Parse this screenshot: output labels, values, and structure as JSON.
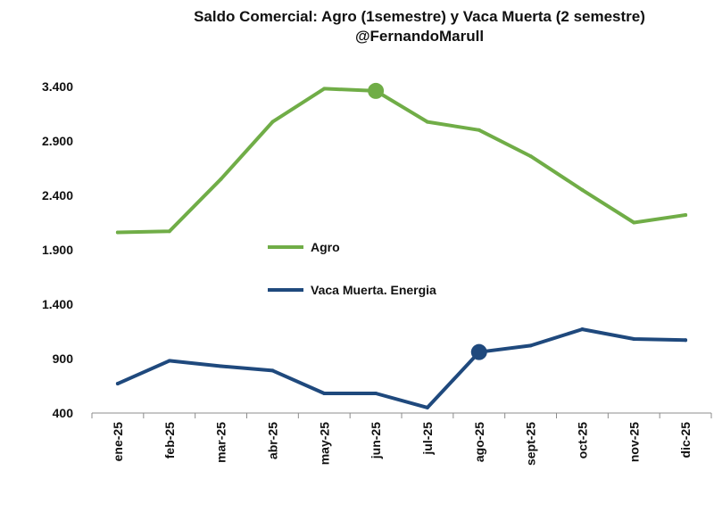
{
  "chart_data": {
    "type": "line",
    "title": "Saldo Comercial: Agro (1semestre) y Vaca Muerta (2 semestre)",
    "subtitle": "@FernandoMarull",
    "categories": [
      "ene-25",
      "feb-25",
      "mar-25",
      "abr-25",
      "may-25",
      "jun-25",
      "jul-25",
      "ago-25",
      "sept-25",
      "oct-25",
      "nov-25",
      "dic-25"
    ],
    "ylim": [
      400,
      3400
    ],
    "yticks": [
      400,
      900,
      1400,
      1900,
      2400,
      2900,
      3400
    ],
    "ytick_labels": [
      "400",
      "900",
      "1.400",
      "1.900",
      "2.400",
      "2.900",
      "3.400"
    ],
    "grid": false,
    "legend_position": "center",
    "series": [
      {
        "name": "Agro",
        "color": "#70ad47",
        "values": [
          2060,
          2070,
          2550,
          3075,
          3380,
          3360,
          3075,
          3000,
          2760,
          2450,
          2150,
          2220
        ],
        "highlight_index": 5
      },
      {
        "name": "Vaca Muerta. Energia",
        "color": "#1f497d",
        "values": [
          670,
          880,
          830,
          790,
          580,
          580,
          450,
          960,
          1020,
          1170,
          1080,
          1070
        ],
        "highlight_index": 7
      }
    ]
  }
}
